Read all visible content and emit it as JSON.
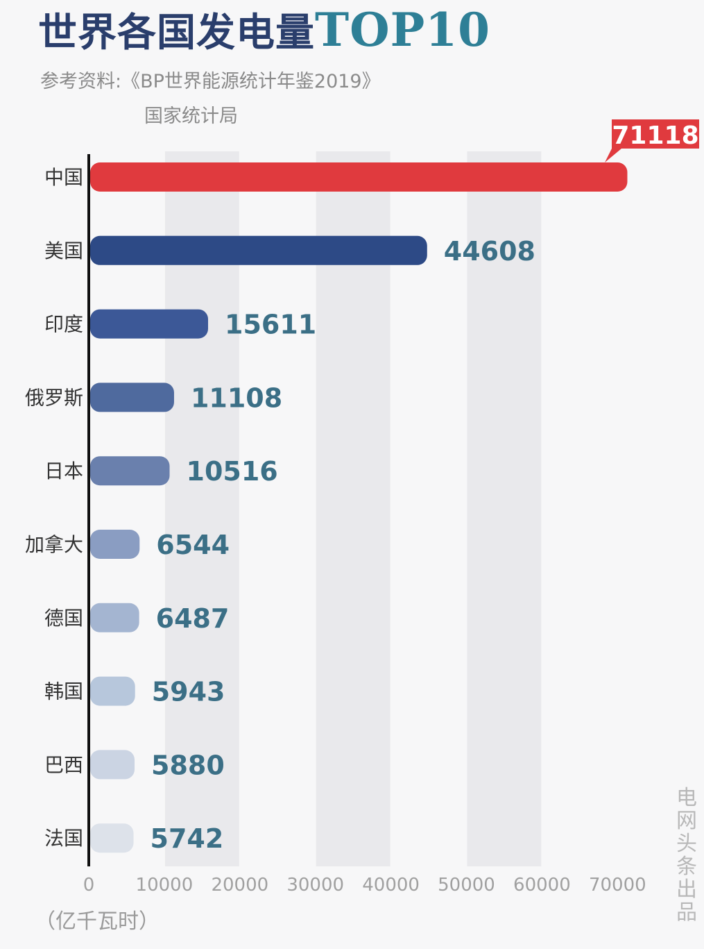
{
  "header": {
    "title_zh": "世界各国发电量",
    "title_en": "TOP10",
    "source_line1": "参考资料:《BP世界能源统计年鉴2019》",
    "source_line2": "国家统计局"
  },
  "unit_label": "（亿千瓦时）",
  "credit": "电网头条出品",
  "chart_data": {
    "type": "bar",
    "orientation": "horizontal",
    "categories": [
      "中国",
      "美国",
      "印度",
      "俄罗斯",
      "日本",
      "加拿大",
      "德国",
      "韩国",
      "巴西",
      "法国"
    ],
    "values": [
      71118,
      44608,
      15611,
      11108,
      10516,
      6544,
      6487,
      5943,
      5880,
      5742
    ],
    "value_labels": [
      "71118",
      "44608",
      "15611",
      "11108",
      "10516",
      "6544",
      "6487",
      "5943",
      "5880",
      "5742"
    ],
    "xlim": [
      0,
      70000
    ],
    "xticks": [
      0,
      10000,
      20000,
      30000,
      40000,
      50000,
      60000,
      70000
    ],
    "xtick_labels": [
      "0",
      "10000",
      "20000",
      "30000",
      "40000",
      "50000",
      "60000",
      "70000"
    ],
    "grid": "alternating vertical bands",
    "highlight_color": "#e03a3e",
    "bar_colors": [
      "#e03a3e",
      "#2d4a86",
      "#3c5897",
      "#4f6a9e",
      "#6a80ad",
      "#8a9dc2",
      "#a4b5d1",
      "#b7c7dc",
      "#cbd4e3",
      "#dde2ea"
    ],
    "label_color": "#3b6f86"
  }
}
